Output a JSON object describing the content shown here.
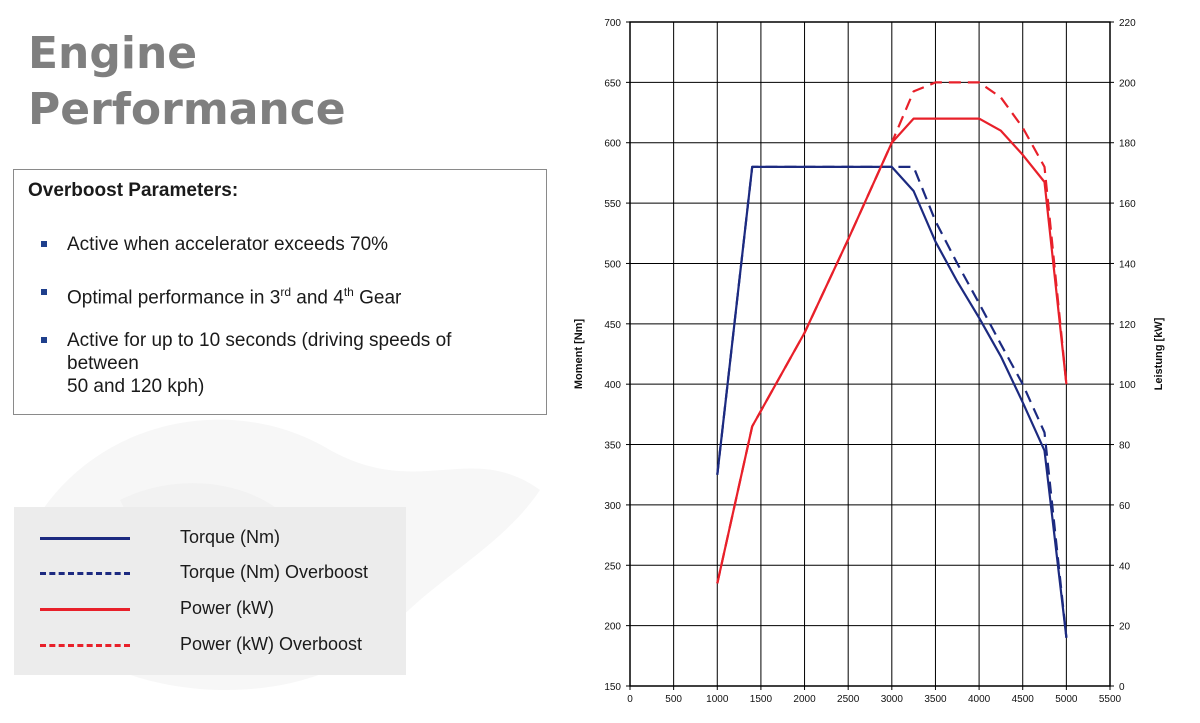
{
  "header": {
    "title_line1": "Engine",
    "title_line2": "Performance"
  },
  "overboost": {
    "heading": "Overboost Parameters:",
    "bullets": [
      {
        "text": "Active when accelerator exceeds 70%"
      },
      {
        "pre": "Optimal performance in 3",
        "sup1": "rd",
        "mid": " and 4",
        "sup2": "th",
        "post": " Gear"
      },
      {
        "line1": "Active for up to 10 seconds (driving speeds of",
        "line2": "between",
        "line3": "50 and 120 kph)"
      }
    ]
  },
  "legend": [
    {
      "label": "Torque (Nm)"
    },
    {
      "label": "Torque (Nm) Overboost"
    },
    {
      "label": "Power (kW)"
    },
    {
      "label": "Power (kW) Overboost"
    }
  ],
  "colors": {
    "torque": "#1c2a80",
    "power": "#e8202a",
    "title": "#7f7f7f",
    "bullet": "#1f3f8c"
  },
  "chart_data": {
    "type": "line",
    "xlabel": "",
    "ylabel": "Moment [Nm]",
    "y2label": "Leistung [kW]",
    "xlim": [
      0,
      5500
    ],
    "ylim": [
      150,
      700
    ],
    "y2lim": [
      0,
      220
    ],
    "grid": true,
    "x_ticks": [
      0,
      500,
      1000,
      1500,
      2000,
      2500,
      3000,
      3500,
      4000,
      4500,
      5000,
      5500
    ],
    "y_ticks": [
      150,
      200,
      250,
      300,
      350,
      400,
      450,
      500,
      550,
      600,
      650,
      700
    ],
    "y2_ticks": [
      0,
      20,
      40,
      60,
      80,
      100,
      120,
      140,
      160,
      180,
      200,
      220
    ],
    "series": [
      {
        "name": "Torque (Nm)",
        "axis": "left",
        "dash": "solid",
        "color_key": "torque",
        "x": [
          1000,
          1400,
          3000,
          3250,
          3500,
          3750,
          4000,
          4250,
          4500,
          4750,
          5000
        ],
        "y": [
          325,
          580,
          580,
          560,
          518,
          485,
          455,
          423,
          385,
          345,
          190
        ]
      },
      {
        "name": "Torque (Nm) Overboost",
        "axis": "left",
        "dash": "dashed",
        "color_key": "torque",
        "x": [
          1000,
          1400,
          3000,
          3250,
          3500,
          3750,
          4000,
          4250,
          4500,
          4750,
          5000
        ],
        "y": [
          325,
          580,
          580,
          580,
          535,
          500,
          467,
          433,
          400,
          360,
          190
        ]
      },
      {
        "name": "Power (kW)",
        "axis": "right",
        "dash": "solid",
        "color_key": "power",
        "x": [
          1000,
          1400,
          2000,
          2500,
          3000,
          3250,
          3500,
          4000,
          4250,
          4500,
          4750,
          5000
        ],
        "y": [
          34,
          86,
          117,
          148,
          180,
          188,
          188,
          188,
          184,
          176,
          167,
          100
        ]
      },
      {
        "name": "Power (kW) Overboost",
        "axis": "right",
        "dash": "dashed",
        "color_key": "power",
        "x": [
          1000,
          1400,
          2000,
          2500,
          3000,
          3250,
          3500,
          4000,
          4250,
          4500,
          4750,
          5000
        ],
        "y": [
          34,
          86,
          117,
          148,
          180,
          197,
          200,
          200,
          195,
          185,
          172,
          100
        ]
      }
    ]
  }
}
